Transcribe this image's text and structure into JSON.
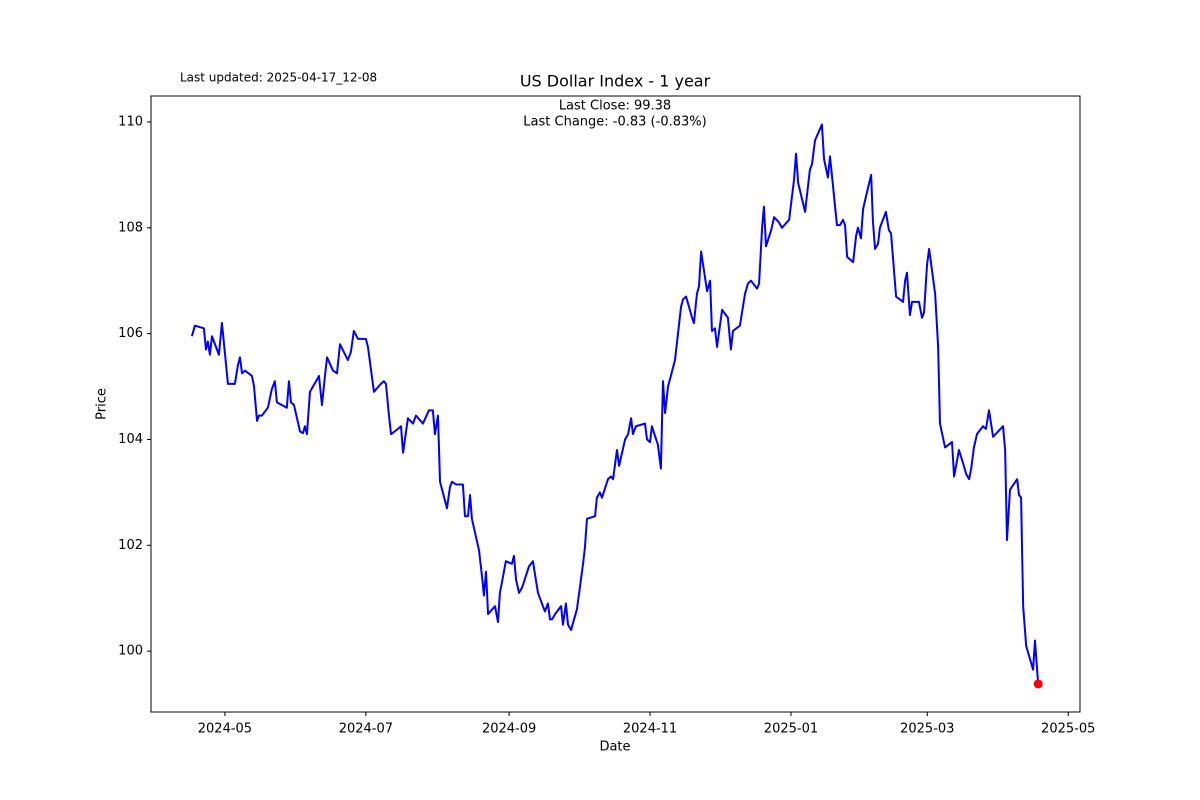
{
  "chart_data": {
    "type": "line",
    "title": "US Dollar Index - 1 year",
    "subtitle": "Last updated: 2025-04-17_12-08",
    "annotations": [
      "Last Close: 99.38",
      "Last Change: -0.83 (-0.83%)"
    ],
    "xlabel": "Date",
    "ylabel": "Price",
    "color": "#0000ff",
    "marker_color": "#ff0000",
    "x": [
      -14.3,
      -13,
      -9.1,
      -8.2,
      -7.4,
      -6.5,
      -5.6,
      -2.6,
      -1.3,
      1.3,
      4.3,
      5.6,
      6.5,
      7.4,
      8.7,
      11.7,
      12.6,
      13.9,
      14.7,
      16,
      18.6,
      20.3,
      21.6,
      22.5,
      26.8,
      27.7,
      28.6,
      29.9,
      32.5,
      33.8,
      34.6,
      35.5,
      36.8,
      40.7,
      42,
      43.3,
      44.2,
      46.8,
      48.5,
      49.8,
      53.2,
      54.5,
      55.8,
      57.6,
      61,
      61.9,
      64.5,
      67.5,
      68.8,
      69.7,
      71,
      71.9,
      74.9,
      76.2,
      77.1,
      78.4,
      79.2,
      81.4,
      82.7,
      85.7,
      88.3,
      90,
      90.9,
      92.2,
      93.1,
      96.1,
      97.4,
      98.3,
      100,
      103,
      103.9,
      105.2,
      106.1,
      106.9,
      110,
      111.3,
      112.1,
      113,
      113.9,
      116.9,
      118.2,
      119,
      119.9,
      121.6,
      124.2,
      125.1,
      126,
      127.3,
      128.6,
      131.6,
      133.3,
      135.5,
      138.5,
      139.8,
      140.7,
      141.6,
      142.9,
      145.5,
      146.3,
      147.6,
      148.5,
      149.8,
      152.4,
      155,
      155.8,
      156.7,
      160.2,
      161,
      162.3,
      163.2,
      165.8,
      167.1,
      168,
      169.7,
      170.6,
      173.2,
      174.5,
      175.8,
      176.6,
      177.9,
      181.8,
      182.7,
      184,
      184.8,
      187.4,
      188.7,
      189.6,
      190.5,
      191.8,
      194.8,
      196.1,
      197.4,
      198.3,
      199.6,
      202.2,
      203,
      204.3,
      205.2,
      206.1,
      208.7,
      210,
      210.8,
      212.1,
      213,
      215.2,
      217.7,
      219,
      219.9,
      222.9,
      225.1,
      226.4,
      227.7,
      230.3,
      231.2,
      232.5,
      233.3,
      234.2,
      236.4,
      237.7,
      239.8,
      241.1,
      244.2,
      246.3,
      247.2,
      248.1,
      251.1,
      253.2,
      254.1,
      255.4,
      258.4,
      259.3,
      261,
      261.9,
      264.9,
      266.2,
      267.5,
      268.4,
      269.3,
      271.9,
      273.2,
      274,
      275.3,
      276.2,
      277.5,
      279.7,
      280.5,
      281.4,
      282.7,
      283.5,
      286.1,
      287.4,
      288.3,
      290.5,
      293.5,
      294.4,
      295.2,
      296.5,
      297.4,
      300.4,
      301.7,
      302.6,
      303.9,
      304.8,
      307.4,
      308.7,
      309.5,
      311.7,
      314.7,
      315.6,
      317.7,
      319.5,
      320.8,
      322.1,
      323,
      324.2,
      325.5,
      328.1,
      329.4,
      330.7,
      332.5,
      336.8,
      337.7,
      338.5,
      339.8,
      342.9,
      343.7,
      344.6,
      345.5,
      346.8,
      349.8,
      350.6,
      352
    ],
    "values": [
      105.95,
      106.15,
      106.1,
      105.7,
      105.85,
      105.6,
      105.95,
      105.6,
      106.2,
      105.05,
      105.05,
      105.4,
      105.55,
      105.25,
      105.3,
      105.2,
      105.0,
      104.35,
      104.45,
      104.45,
      104.6,
      104.95,
      105.1,
      104.7,
      104.6,
      105.1,
      104.7,
      104.65,
      104.15,
      104.12,
      104.25,
      104.1,
      104.9,
      105.2,
      104.65,
      105.2,
      105.55,
      105.3,
      105.25,
      105.8,
      105.5,
      105.65,
      106.05,
      105.9,
      105.9,
      105.75,
      104.9,
      105.05,
      105.1,
      105.05,
      104.45,
      104.1,
      104.2,
      104.25,
      103.75,
      104.15,
      104.4,
      104.3,
      104.45,
      104.3,
      104.55,
      104.55,
      104.1,
      104.45,
      103.2,
      102.7,
      103.1,
      103.2,
      103.15,
      103.15,
      102.55,
      102.55,
      102.95,
      102.5,
      101.9,
      101.4,
      101.05,
      101.5,
      100.7,
      100.85,
      100.55,
      101.1,
      101.3,
      101.7,
      101.65,
      101.8,
      101.35,
      101.1,
      101.2,
      101.6,
      101.7,
      101.1,
      100.75,
      100.9,
      100.6,
      100.6,
      100.7,
      100.85,
      100.5,
      100.9,
      100.5,
      100.4,
      100.8,
      101.65,
      101.95,
      102.5,
      102.55,
      102.9,
      103.0,
      102.9,
      103.25,
      103.3,
      103.25,
      103.8,
      103.5,
      104.0,
      104.1,
      104.4,
      104.1,
      104.25,
      104.3,
      104.0,
      103.95,
      104.25,
      103.9,
      103.45,
      105.1,
      104.5,
      105.0,
      105.5,
      106.0,
      106.5,
      106.65,
      106.7,
      106.3,
      106.2,
      106.75,
      106.9,
      107.55,
      106.8,
      107.0,
      106.05,
      106.1,
      105.75,
      106.45,
      106.3,
      105.7,
      106.05,
      106.15,
      106.75,
      106.95,
      107.0,
      106.85,
      106.95,
      108.0,
      108.4,
      107.65,
      107.95,
      108.2,
      108.1,
      108.0,
      108.15,
      108.9,
      109.4,
      108.85,
      108.3,
      109.1,
      109.2,
      109.65,
      109.95,
      109.3,
      108.95,
      109.35,
      108.05,
      108.05,
      108.15,
      108.05,
      107.45,
      107.35,
      107.85,
      108.0,
      107.8,
      108.35,
      108.6,
      109.0,
      108.1,
      107.6,
      107.7,
      108.0,
      108.3,
      107.95,
      107.9,
      106.7,
      106.6,
      107.0,
      107.15,
      106.35,
      106.6,
      106.6,
      106.3,
      106.4,
      107.3,
      107.6,
      106.75,
      105.75,
      104.3,
      103.85,
      103.95,
      103.3,
      103.8,
      103.55,
      103.35,
      103.25,
      103.45,
      103.85,
      104.1,
      104.25,
      104.2,
      104.55,
      104.05,
      104.25,
      103.8,
      102.1,
      103.05,
      103.25,
      102.95,
      102.9,
      100.85,
      100.1,
      99.65,
      100.2,
      99.38
    ],
    "xlim": [
      -32,
      370.1
    ],
    "xticks": [
      {
        "value": 0,
        "label": "2024-05"
      },
      {
        "value": 61,
        "label": "2024-07"
      },
      {
        "value": 123,
        "label": "2024-09"
      },
      {
        "value": 184,
        "label": "2024-11"
      },
      {
        "value": 245,
        "label": "2025-01"
      },
      {
        "value": 304,
        "label": "2025-03"
      },
      {
        "value": 365,
        "label": "2025-05"
      }
    ],
    "ylim": [
      98.85,
      110.49
    ],
    "yticks": [
      100,
      102,
      104,
      106,
      108,
      110
    ],
    "grid": false
  }
}
